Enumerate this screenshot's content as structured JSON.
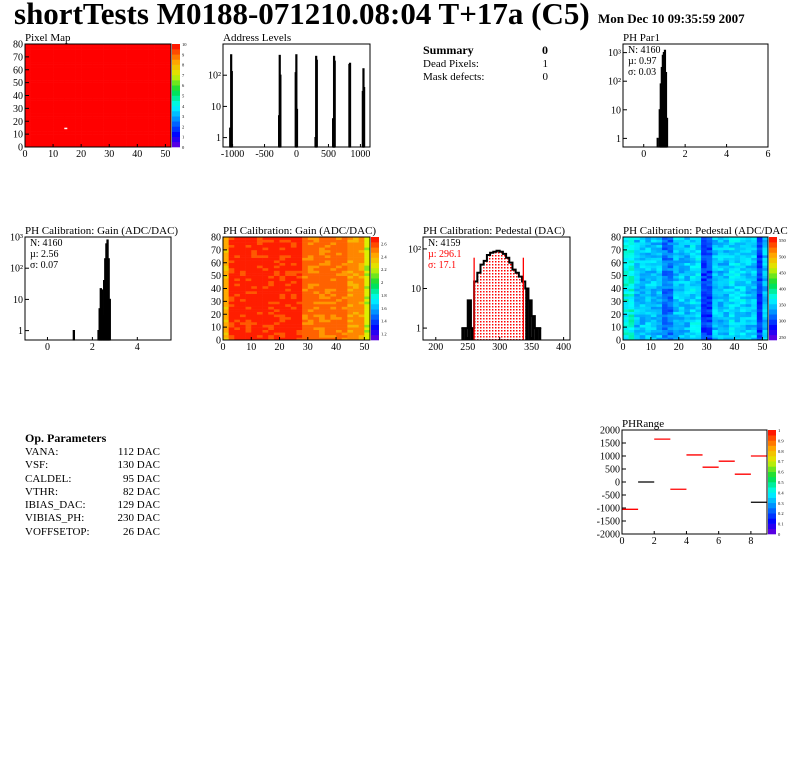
{
  "header": {
    "title": "shortTests M0188-071210.08:04 T+17a (C5)",
    "date": "Mon Dec 10 09:35:59 2007"
  },
  "summary": {
    "title": "Summary",
    "total": "0",
    "rows": [
      {
        "label": "Dead Pixels:",
        "value": "1"
      },
      {
        "label": "Mask defects:",
        "value": "0"
      }
    ]
  },
  "op_params": {
    "title": "Op. Parameters",
    "rows": [
      {
        "label": "VANA:",
        "value": "112 DAC"
      },
      {
        "label": "VSF:",
        "value": "130 DAC"
      },
      {
        "label": "CALDEL:",
        "value": "95 DAC"
      },
      {
        "label": "VTHR:",
        "value": "82 DAC"
      },
      {
        "label": "IBIAS_DAC:",
        "value": "129 DAC"
      },
      {
        "label": "VIBIAS_PH:",
        "value": "230 DAC"
      },
      {
        "label": "VOFFSETOP:",
        "value": "26 DAC"
      }
    ]
  },
  "chart_data": [
    {
      "id": "pixel-map",
      "type": "heatmap",
      "title": "Pixel Map",
      "xlim": [
        0,
        52
      ],
      "ylim": [
        0,
        80
      ],
      "xticks": [
        0,
        10,
        20,
        30,
        40,
        50
      ],
      "yticks": [
        0,
        10,
        20,
        30,
        40,
        50,
        60,
        70,
        80
      ],
      "zlim": [
        0,
        10
      ],
      "zticks": [
        0,
        1,
        2,
        3,
        4,
        5,
        6,
        7,
        8,
        9,
        10
      ],
      "pattern": "uniform",
      "base": 10,
      "dead_pixels": [
        [
          14,
          15
        ]
      ]
    },
    {
      "id": "address-levels",
      "type": "bar",
      "title": "Address Levels",
      "log": true,
      "xlim": [
        -1150,
        1150
      ],
      "ylim": [
        0.5,
        1000
      ],
      "xticks": [
        -1000,
        -500,
        0,
        500,
        1000
      ],
      "yticks": [
        1,
        10,
        100
      ],
      "ytick_labels": [
        "1",
        "10",
        "10²"
      ],
      "bins": [
        [
          -1045,
          2
        ],
        [
          -1030,
          450
        ],
        [
          -1020,
          130
        ],
        [
          -280,
          5
        ],
        [
          -270,
          430
        ],
        [
          -260,
          100
        ],
        [
          -20,
          120
        ],
        [
          -10,
          450
        ],
        [
          0,
          8
        ],
        [
          290,
          1
        ],
        [
          300,
          400
        ],
        [
          310,
          300
        ],
        [
          565,
          4
        ],
        [
          575,
          3
        ],
        [
          580,
          400
        ],
        [
          590,
          280
        ],
        [
          820,
          220
        ],
        [
          830,
          240
        ],
        [
          1030,
          30
        ],
        [
          1040,
          160
        ],
        [
          1050,
          40
        ]
      ],
      "bin_width": 10
    },
    {
      "id": "ph-par1",
      "type": "bar",
      "title": "PH Par1",
      "log": true,
      "xlim": [
        -1,
        6
      ],
      "ylim": [
        0.5,
        2000
      ],
      "xticks": [
        0,
        2,
        4,
        6
      ],
      "yticks": [
        1,
        10,
        100,
        1000
      ],
      "ytick_labels": [
        "1",
        "10",
        "10²",
        "10³"
      ],
      "bins": [
        [
          0.65,
          1
        ],
        [
          0.75,
          10
        ],
        [
          0.8,
          80
        ],
        [
          0.85,
          300
        ],
        [
          0.9,
          800
        ],
        [
          0.95,
          1000
        ],
        [
          1.0,
          1200
        ],
        [
          1.05,
          200
        ],
        [
          1.1,
          5
        ]
      ],
      "bin_width": 0.05,
      "stats": [
        {
          "text": "N: 4160",
          "color": "#000000"
        },
        {
          "text": "µ: 0.97",
          "color": "#000000"
        },
        {
          "text": "σ: 0.03",
          "color": "#000000"
        }
      ]
    },
    {
      "id": "gain-hist",
      "type": "bar",
      "title": "PH Calibration: Gain (ADC/DAC)",
      "log": true,
      "xlim": [
        -1,
        5.5
      ],
      "ylim": [
        0.5,
        1000
      ],
      "xticks": [
        0,
        2,
        4
      ],
      "yticks": [
        1,
        10,
        100,
        1000
      ],
      "ytick_labels": [
        "1",
        "10",
        "10²",
        "10³"
      ],
      "bins": [
        [
          1.15,
          1
        ],
        [
          2.25,
          1
        ],
        [
          2.3,
          5
        ],
        [
          2.35,
          22
        ],
        [
          2.4,
          20
        ],
        [
          2.45,
          3
        ],
        [
          2.5,
          40
        ],
        [
          2.55,
          200
        ],
        [
          2.6,
          600
        ],
        [
          2.65,
          800
        ],
        [
          2.7,
          200
        ],
        [
          2.75,
          10
        ]
      ],
      "bin_width": 0.05,
      "stats": [
        {
          "text": "N: 4160",
          "color": "#000000"
        },
        {
          "text": "µ: 2.56",
          "color": "#000000"
        },
        {
          "text": "σ: 0.07",
          "color": "#000000"
        }
      ]
    },
    {
      "id": "gain-map",
      "type": "heatmap",
      "title": "PH Calibration: Gain (ADC/DAC)",
      "xlim": [
        0,
        52
      ],
      "ylim": [
        0,
        80
      ],
      "xticks": [
        0,
        10,
        20,
        30,
        40,
        50
      ],
      "yticks": [
        0,
        10,
        20,
        30,
        40,
        50,
        60,
        70,
        80
      ],
      "zlim": [
        1.1,
        2.7
      ],
      "zticks": [
        1.2,
        1.4,
        1.6,
        1.8,
        2,
        2.2,
        2.4,
        2.6
      ],
      "pattern": "gain"
    },
    {
      "id": "pedestal-hist",
      "type": "bar",
      "title": "PH Calibration: Pedestal (DAC)",
      "log": true,
      "xlim": [
        180,
        410
      ],
      "ylim": [
        0.5,
        200
      ],
      "xticks": [
        200,
        250,
        300,
        350,
        400
      ],
      "yticks": [
        1,
        10,
        100
      ],
      "ytick_labels": [
        "1",
        "10",
        "10²"
      ],
      "bins": [
        [
          240,
          1
        ],
        [
          245,
          1
        ],
        [
          250,
          5
        ],
        [
          255,
          1
        ],
        [
          260,
          15
        ],
        [
          265,
          25
        ],
        [
          270,
          40
        ],
        [
          275,
          50
        ],
        [
          280,
          70
        ],
        [
          285,
          80
        ],
        [
          290,
          85
        ],
        [
          295,
          90
        ],
        [
          300,
          85
        ],
        [
          305,
          75
        ],
        [
          310,
          60
        ],
        [
          315,
          45
        ],
        [
          320,
          30
        ],
        [
          325,
          25
        ],
        [
          330,
          20
        ],
        [
          335,
          15
        ],
        [
          340,
          10
        ],
        [
          345,
          5
        ],
        [
          350,
          2
        ],
        [
          355,
          1
        ],
        [
          360,
          1
        ]
      ],
      "bin_width": 5,
      "fit_range": [
        260,
        337
      ],
      "stats": [
        {
          "text": "N: 4159",
          "color": "#000000"
        },
        {
          "text": "µ: 296.1",
          "color": "#ff0000"
        },
        {
          "text": "σ: 17.1",
          "color": "#ff0000"
        }
      ]
    },
    {
      "id": "pedestal-map",
      "type": "heatmap",
      "title": "PH Calibration: Pedestal (ADC/DAC",
      "xlim": [
        0,
        52
      ],
      "ylim": [
        0,
        80
      ],
      "xticks": [
        0,
        10,
        20,
        30,
        40,
        50
      ],
      "yticks": [
        0,
        10,
        20,
        30,
        40,
        50,
        60,
        70,
        80
      ],
      "zlim": [
        240,
        560
      ],
      "zticks": [
        250,
        300,
        350,
        400,
        450,
        500,
        550
      ],
      "pattern": "pedestal"
    },
    {
      "id": "ph-range",
      "type": "segments",
      "title": "PHRange",
      "xlim": [
        0,
        9
      ],
      "ylim": [
        -2000,
        2000
      ],
      "xticks": [
        0,
        2,
        4,
        6,
        8
      ],
      "yticks": [
        -2000,
        -1500,
        -1000,
        -500,
        0,
        500,
        1000,
        1500,
        2000
      ],
      "zlim": [
        0,
        1
      ],
      "zticks": [
        0,
        0.1,
        0.2,
        0.3,
        0.4,
        0.5,
        0.6,
        0.7,
        0.8,
        0.9,
        1
      ],
      "segments": [
        [
          0,
          1,
          -1050
        ],
        [
          1,
          2,
          0
        ],
        [
          2,
          3,
          1650
        ],
        [
          3,
          4,
          -280
        ],
        [
          4,
          5,
          1040
        ],
        [
          5,
          6,
          570
        ],
        [
          6,
          7,
          800
        ],
        [
          7,
          8,
          300
        ],
        [
          8,
          9,
          1000
        ],
        [
          8,
          9,
          -780
        ]
      ]
    }
  ]
}
